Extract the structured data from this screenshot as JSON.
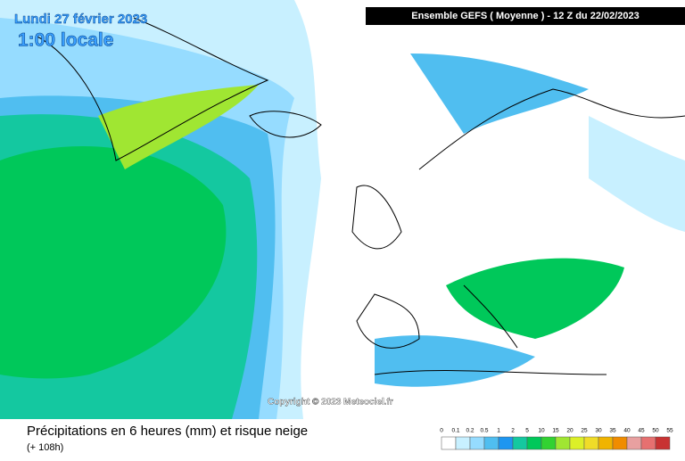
{
  "header": {
    "date": "Lundi 27 février 2023",
    "time": "1:00 locale",
    "model": "Ensemble GEFS  ( Moyenne )  -  12 Z du 22/02/2023"
  },
  "copyright": "Copyright © 2023 Meteociel.fr",
  "footer": {
    "title": "Précipitations en 6 heures (mm) et risque neige",
    "lead": "(+ 108h)"
  },
  "legend": {
    "labels": [
      "0",
      "0.1",
      "0.2",
      "0.5",
      "1",
      "2",
      "5",
      "10",
      "15",
      "20",
      "25",
      "30",
      "35",
      "40",
      "45",
      "50",
      "55"
    ],
    "colors": [
      "#ffffff",
      "#c8f0ff",
      "#96dcff",
      "#50bef0",
      "#1e96f0",
      "#14c8a0",
      "#00c85a",
      "#32d232",
      "#a0e632",
      "#dcf028",
      "#f0dc28",
      "#f0b400",
      "#f08c00",
      "#e8a0a0",
      "#e67070",
      "#c83232"
    ]
  }
}
